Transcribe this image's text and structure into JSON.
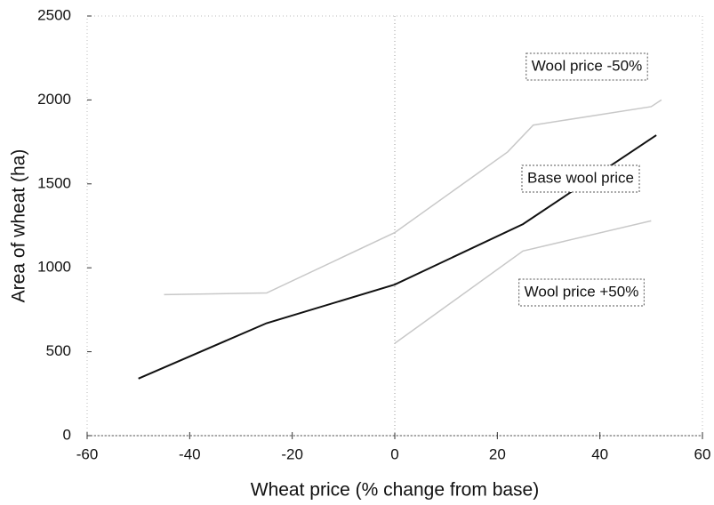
{
  "chart_data": {
    "type": "line",
    "xlabel": "Wheat price (% change from base)",
    "ylabel": "Area of wheat (ha)",
    "xlim": [
      -60,
      60
    ],
    "xticks": [
      -60,
      -40,
      -20,
      0,
      20,
      40,
      60
    ],
    "ylim": [
      0,
      2500
    ],
    "yticks": [
      0,
      500,
      1000,
      1500,
      2000,
      2500
    ],
    "series": [
      {
        "name": "Wool price -50%",
        "color": "#c8c8c8",
        "x": [
          -45,
          -25,
          0,
          22,
          27,
          50,
          52
        ],
        "values": [
          840,
          850,
          1210,
          1690,
          1850,
          1960,
          2000
        ]
      },
      {
        "name": "Base wool price",
        "color": "#111111",
        "x": [
          -50,
          -25,
          0,
          25,
          51
        ],
        "values": [
          340,
          670,
          900,
          1260,
          1790
        ]
      },
      {
        "name": "Wool price +50%",
        "color": "#c8c8c8",
        "x": [
          0,
          25,
          50
        ],
        "values": [
          550,
          1100,
          1280
        ]
      }
    ]
  }
}
